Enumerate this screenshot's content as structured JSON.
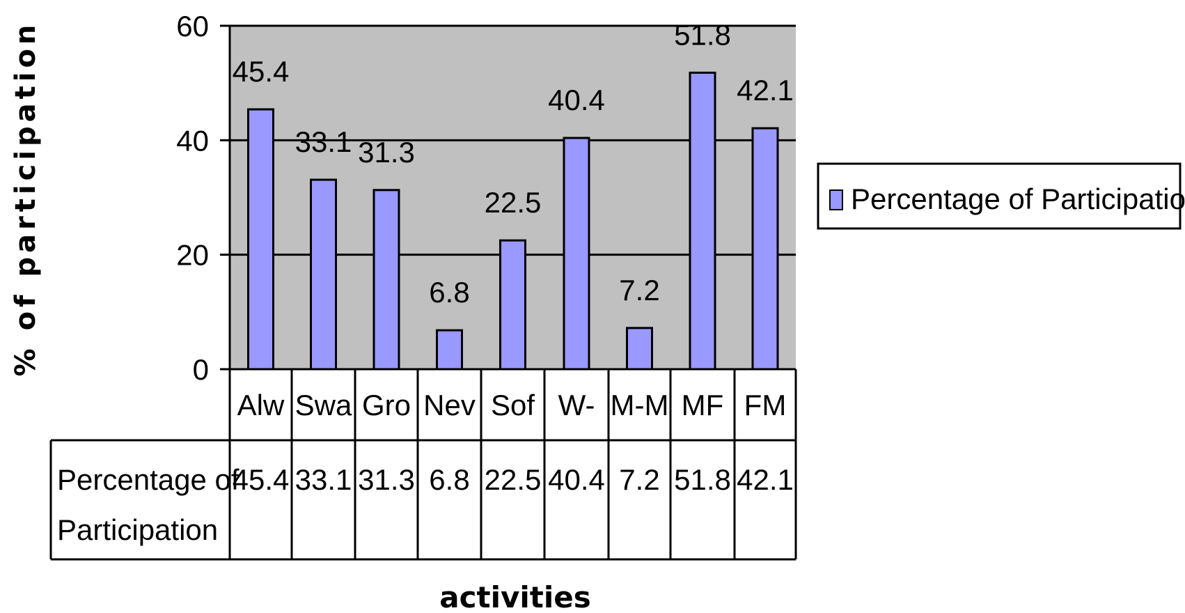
{
  "chart_data": {
    "type": "bar",
    "categories": [
      "Alw",
      "Swa",
      "Gro",
      "Nev",
      "Sof",
      "W-",
      "M-M",
      "MF",
      "FM"
    ],
    "series": [
      {
        "name": "Percentage of Participation",
        "values": [
          45.4,
          33.1,
          31.3,
          6.8,
          22.5,
          40.4,
          7.2,
          51.8,
          42.1
        ]
      }
    ],
    "data_labels": [
      "45.4",
      "33.1",
      "31.3",
      "6.8",
      "22.5",
      "40.4",
      "7.2",
      "51.8",
      "42.1"
    ],
    "table_row_label_lines": [
      "Percentage of",
      "Participation"
    ],
    "xlabel": "activities",
    "ylabel": "% of participation",
    "ylim": [
      0,
      60
    ],
    "yticks": [
      "0",
      "20",
      "40",
      "60"
    ],
    "grid": true,
    "legend": {
      "position": "right",
      "entries": [
        "Percentage of Participation"
      ]
    },
    "data_table": true,
    "colors": {
      "bar": "#9999FF",
      "plot_area": "#C0C0C0",
      "edge": "#000000"
    }
  }
}
